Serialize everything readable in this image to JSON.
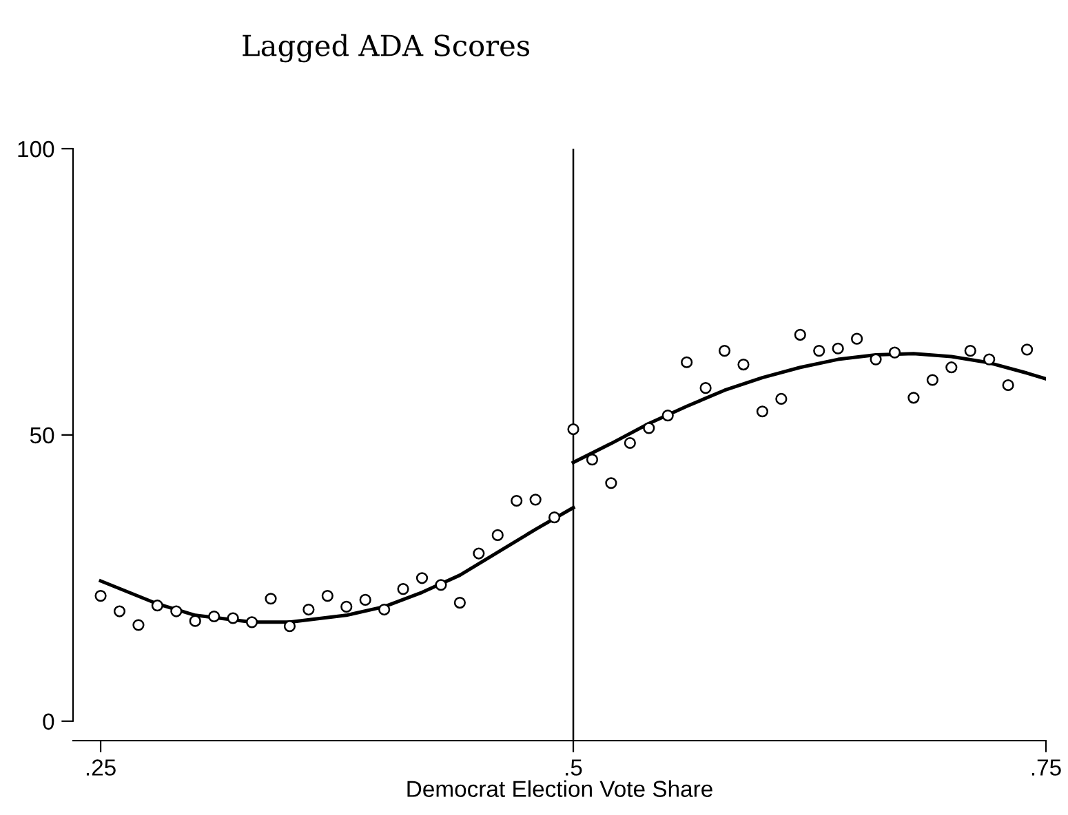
{
  "chart_data": {
    "type": "scatter",
    "title": "Lagged ADA Scores",
    "xlabel": "Democrat Election Vote Share",
    "xlim": [
      0.2354,
      0.75
    ],
    "ylim": [
      -3.4,
      100
    ],
    "xticks": [
      {
        "value": 0.25,
        "label": ".25"
      },
      {
        "value": 0.5,
        "label": ".5"
      },
      {
        "value": 0.75,
        "label": ".75"
      }
    ],
    "yticks": [
      0,
      50,
      100
    ],
    "grid": false,
    "legend": false,
    "ref_lines": [
      {
        "axis": "x",
        "value": 0.5,
        "color": "#000000"
      }
    ],
    "series": [
      {
        "marker": "circle",
        "color": "#000000",
        "x": [
          0.25,
          0.26,
          0.27,
          0.28,
          0.29,
          0.3,
          0.31,
          0.32,
          0.33,
          0.34,
          0.35,
          0.36,
          0.37,
          0.38,
          0.39,
          0.4,
          0.41,
          0.42,
          0.43,
          0.44,
          0.45,
          0.46,
          0.47,
          0.48,
          0.49,
          0.5,
          0.51,
          0.52,
          0.53,
          0.54,
          0.55,
          0.56,
          0.57,
          0.58,
          0.59,
          0.6,
          0.61,
          0.62,
          0.63,
          0.64,
          0.65,
          0.66,
          0.67,
          0.68,
          0.69,
          0.7,
          0.71,
          0.72,
          0.73,
          0.74
        ],
        "values": [
          21.9,
          19.2,
          16.8,
          20.2,
          19.2,
          17.5,
          18.3,
          18.0,
          17.3,
          21.4,
          16.6,
          19.5,
          21.9,
          20.0,
          21.2,
          19.5,
          23.1,
          25.0,
          23.8,
          20.7,
          29.3,
          32.5,
          38.5,
          38.7,
          35.6,
          51.0,
          45.7,
          41.6,
          48.6,
          51.2,
          53.4,
          62.7,
          58.2,
          64.7,
          62.3,
          54.1,
          56.3,
          67.5,
          64.7,
          65.1,
          66.8,
          63.2,
          64.4,
          56.5,
          59.6,
          61.8,
          64.7,
          63.2,
          58.7,
          64.9
        ]
      },
      {
        "type": "line",
        "marker": "none",
        "color": "#000000",
        "x": [
          0.25,
          0.28,
          0.3,
          0.33,
          0.35,
          0.38,
          0.4,
          0.42,
          0.44,
          0.46,
          0.48,
          0.5
        ],
        "values": [
          24.5,
          20.5,
          18.5,
          17.3,
          17.3,
          18.5,
          20.0,
          22.5,
          25.5,
          29.5,
          33.5,
          37.3
        ]
      },
      {
        "type": "line",
        "marker": "none",
        "color": "#000000",
        "x": [
          0.5,
          0.52,
          0.54,
          0.56,
          0.58,
          0.6,
          0.62,
          0.64,
          0.66,
          0.68,
          0.7,
          0.72,
          0.74,
          0.75
        ],
        "values": [
          45.2,
          48.5,
          52.0,
          55.0,
          57.8,
          60.0,
          61.8,
          63.2,
          64.0,
          64.2,
          63.7,
          62.6,
          60.8,
          59.8
        ]
      }
    ]
  }
}
